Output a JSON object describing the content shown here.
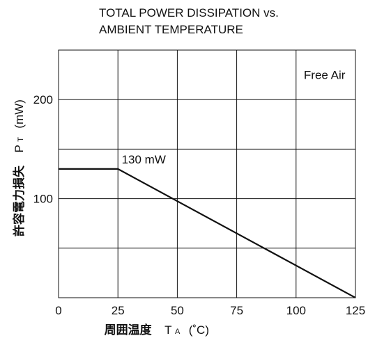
{
  "chart_data": {
    "type": "line",
    "title": [
      "TOTAL POWER DISSIPATION vs.",
      "AMBIENT TEMPERATURE"
    ],
    "xlabel": {
      "jp": "周囲温度",
      "sym_main": "T",
      "sym_sub": "A",
      "unit": "(˚C)"
    },
    "ylabel": {
      "jp": "許容電力損失",
      "sym_main": "P",
      "sym_sub": "T",
      "unit": "(mW)"
    },
    "xlim": [
      0,
      125
    ],
    "ylim": [
      0,
      250
    ],
    "x_ticks": [
      0,
      25,
      50,
      75,
      100,
      125
    ],
    "x_grid": [
      0,
      25,
      50,
      75,
      100,
      125
    ],
    "y_ticks": [
      100,
      200
    ],
    "y_grid": [
      50,
      100,
      150,
      200
    ],
    "grid": true,
    "series": [
      {
        "points": [
          [
            0,
            130
          ],
          [
            25,
            130
          ],
          [
            125,
            0
          ]
        ]
      }
    ],
    "annotations": [
      {
        "text": "130 mW",
        "x": 26,
        "y": 130
      },
      {
        "text": "Free Air",
        "x": 112,
        "y": 225
      }
    ]
  }
}
